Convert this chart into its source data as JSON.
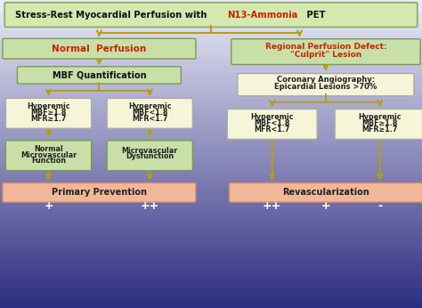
{
  "title_text1": "Stress-Rest Myocardial Perfusion with ",
  "title_text2": "N13-Ammonia",
  "title_text3": " PET",
  "title_box_color": "#d4e8b0",
  "title_box_edge": "#8aaa60",
  "bg_color_top": "#e8e8f5",
  "bg_color_bottom": "#2a2a7a",
  "arrow_color": "#b8a000",
  "green_box_color": "#c8dfa8",
  "green_box_edge": "#7a9a50",
  "cream_box_color": "#f5f5d8",
  "cream_box_edge": "#aaaaaa",
  "salmon_box_color": "#f0b898",
  "salmon_box_edge": "#d08868",
  "red_text": "#cc2200",
  "black_text": "#111111",
  "dark_text": "#222222",
  "white_text": "#ffffff",
  "fig_w": 4.74,
  "fig_h": 3.46,
  "dpi": 100
}
